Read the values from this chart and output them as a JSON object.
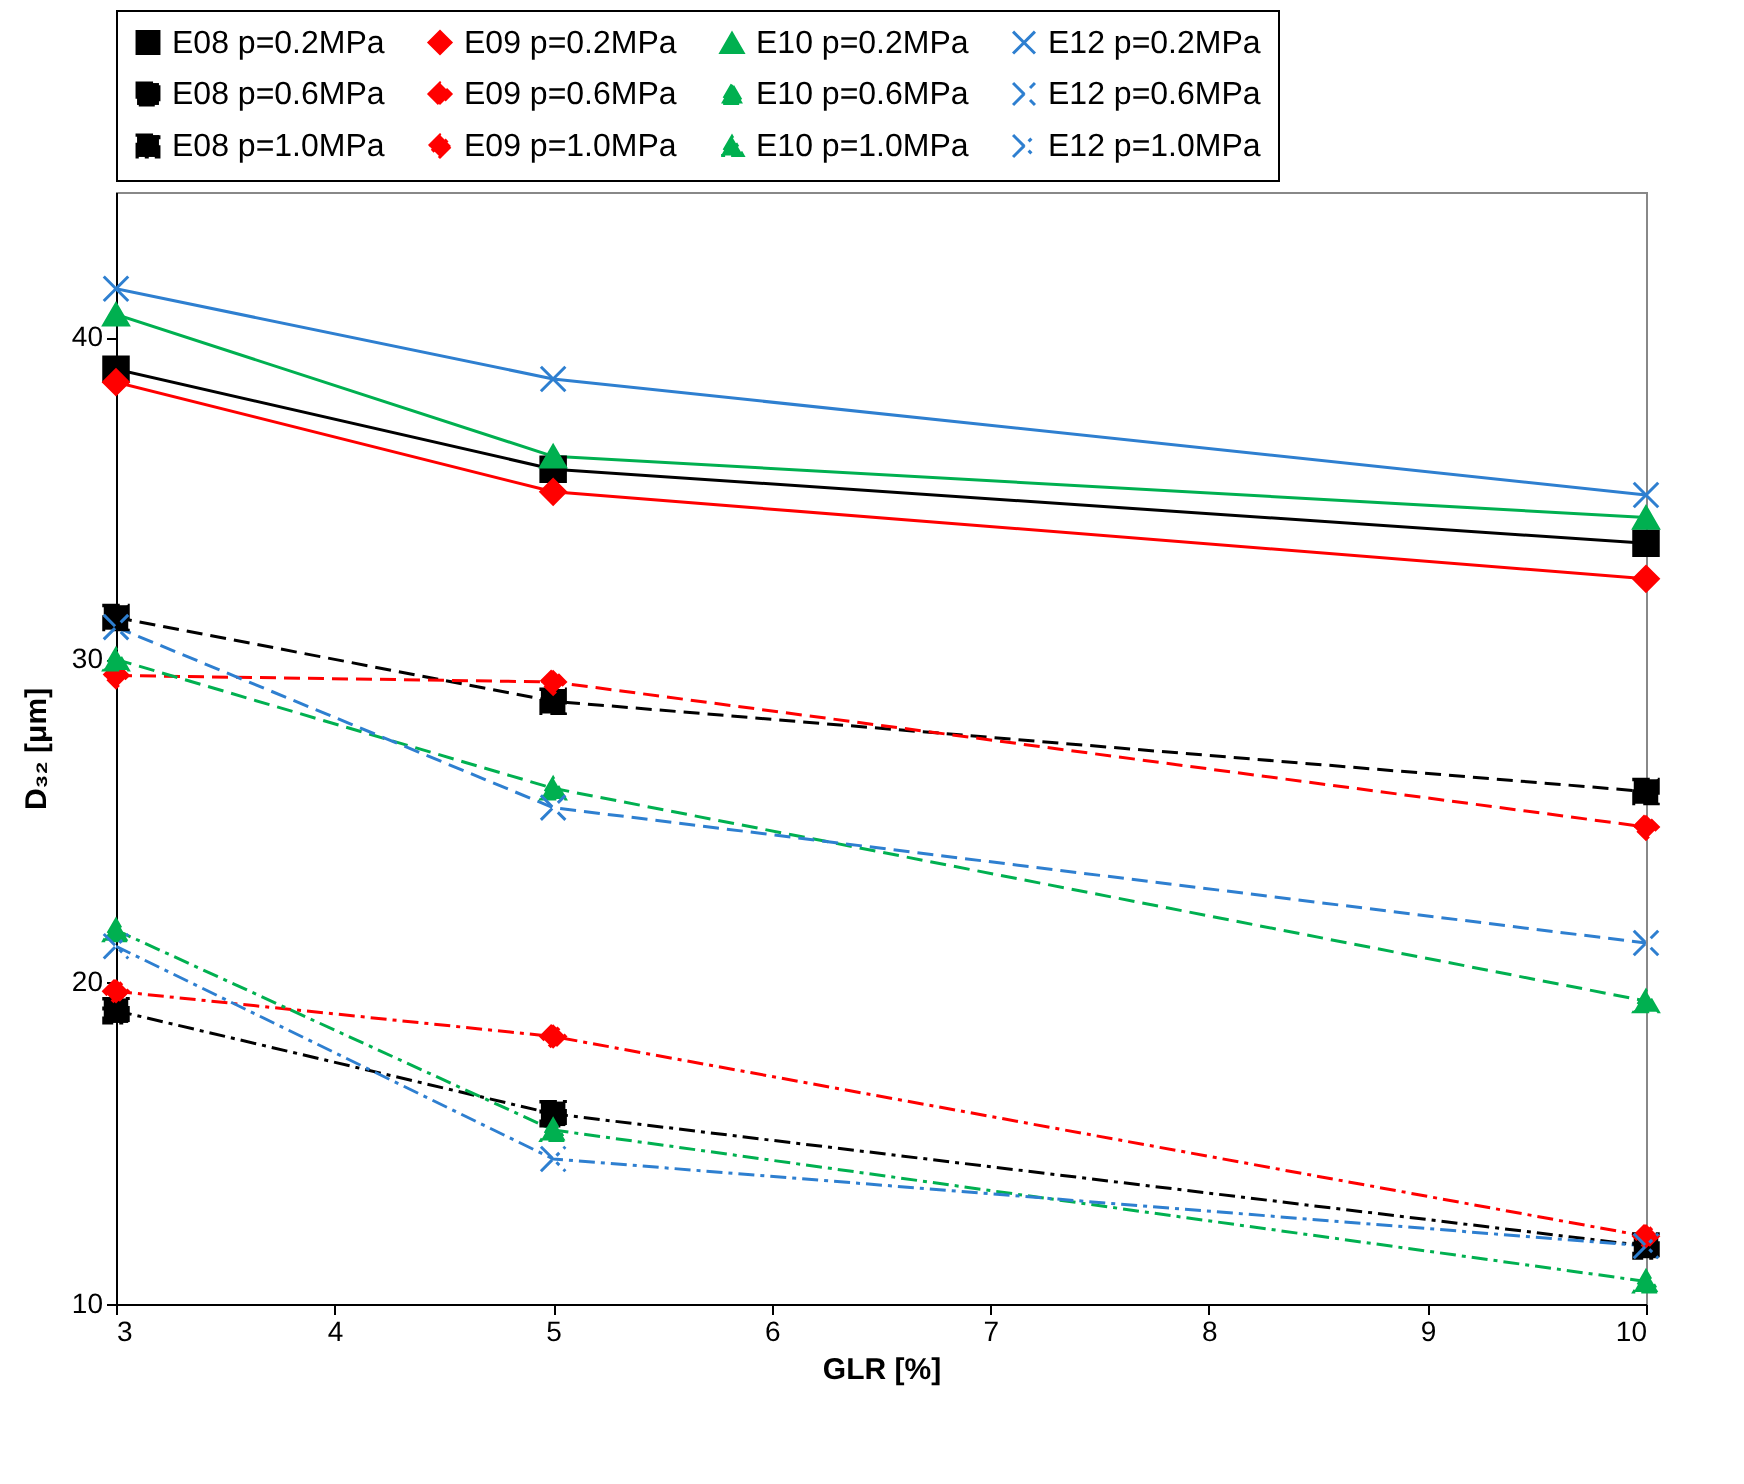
{
  "chart_data": {
    "type": "line",
    "xlabel": "GLR [%]",
    "ylabel": "D₃₂ [μm]",
    "x": [
      3,
      5,
      10
    ],
    "xlim": [
      3,
      10
    ],
    "xticks": [
      3,
      4,
      5,
      6,
      7,
      8,
      9,
      10
    ],
    "ylim": [
      10,
      44.5
    ],
    "yticks": [
      10,
      20,
      30,
      40
    ],
    "grid": false,
    "legend": "top",
    "series": [
      {
        "name": "E08 p=0.2MPa",
        "color": "#000000",
        "marker": "square",
        "line_style": "solid",
        "values": [
          39.0,
          35.9,
          33.6
        ]
      },
      {
        "name": "E09 p=0.2MPa",
        "color": "#ff0000",
        "marker": "diamond",
        "line_style": "solid",
        "values": [
          38.6,
          35.2,
          32.5
        ]
      },
      {
        "name": "E10 p=0.2MPa",
        "color": "#00b050",
        "marker": "triangle",
        "line_style": "solid",
        "values": [
          40.7,
          36.3,
          34.4
        ]
      },
      {
        "name": "E12 p=0.2MPa",
        "color": "#2e7fd0",
        "marker": "cross",
        "line_style": "solid",
        "values": [
          41.5,
          38.7,
          35.1
        ]
      },
      {
        "name": "E08 p=0.6MPa",
        "color": "#000000",
        "marker": "square",
        "line_style": "dashed",
        "values": [
          31.3,
          28.7,
          25.9
        ]
      },
      {
        "name": "E09 p=0.6MPa",
        "color": "#ff0000",
        "marker": "diamond",
        "line_style": "dashed",
        "values": [
          29.5,
          29.3,
          24.8
        ]
      },
      {
        "name": "E10 p=0.6MPa",
        "color": "#00b050",
        "marker": "triangle",
        "line_style": "dashed",
        "values": [
          30.0,
          26.0,
          19.4
        ]
      },
      {
        "name": "E12 p=0.6MPa",
        "color": "#2e7fd0",
        "marker": "cross",
        "line_style": "dashed",
        "values": [
          31.0,
          25.4,
          21.2
        ]
      },
      {
        "name": "E08 p=1.0MPa",
        "color": "#000000",
        "marker": "square",
        "line_style": "dashdot",
        "values": [
          19.1,
          15.9,
          11.8
        ]
      },
      {
        "name": "E09 p=1.0MPa",
        "color": "#ff0000",
        "marker": "diamond",
        "line_style": "dashdot",
        "values": [
          19.7,
          18.3,
          12.1
        ]
      },
      {
        "name": "E10 p=1.0MPa",
        "color": "#00b050",
        "marker": "triangle",
        "line_style": "dashdot",
        "values": [
          21.6,
          15.4,
          10.7
        ]
      },
      {
        "name": "E12 p=1.0MPa",
        "color": "#2e7fd0",
        "marker": "cross",
        "line_style": "dashdot",
        "values": [
          21.1,
          14.5,
          11.8
        ]
      }
    ]
  }
}
